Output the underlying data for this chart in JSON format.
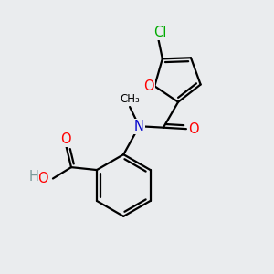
{
  "background_color": "#eaecee",
  "atom_colors": {
    "C": "#000000",
    "O": "#ff0000",
    "N": "#0000cc",
    "Cl": "#00aa00",
    "H": "#7a9a9a"
  },
  "bond_color": "#000000",
  "bond_width": 1.6,
  "font_size_atoms": 10.5
}
